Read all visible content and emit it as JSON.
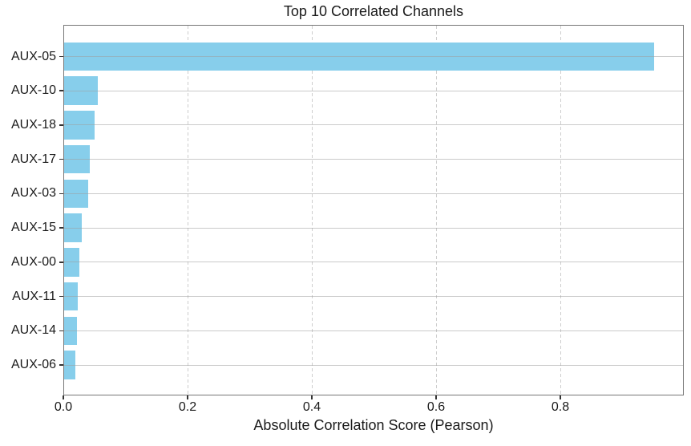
{
  "chart_data": {
    "type": "bar",
    "orientation": "horizontal",
    "title": "Top 10 Correlated Channels",
    "xlabel": "Absolute Correlation Score (Pearson)",
    "ylabel": "",
    "categories": [
      "AUX-05",
      "AUX-10",
      "AUX-18",
      "AUX-17",
      "AUX-03",
      "AUX-15",
      "AUX-00",
      "AUX-11",
      "AUX-14",
      "AUX-06"
    ],
    "values": [
      0.95,
      0.054,
      0.049,
      0.041,
      0.039,
      0.028,
      0.024,
      0.022,
      0.02,
      0.018
    ],
    "x_ticks": [
      0.0,
      0.2,
      0.4,
      0.6,
      0.8
    ],
    "x_tick_labels": [
      "0.0",
      "0.2",
      "0.4",
      "0.6",
      "0.8"
    ],
    "xlim": [
      0,
      0.998
    ],
    "grid": {
      "vertical": "dashed",
      "horizontal": "solid",
      "horizontal_above_bars": true
    },
    "legend": null,
    "colors": {
      "bar": "#87CEEB",
      "grid_dashed": "#cdcdcd",
      "grid_solid_overlay": "#9e9e9e",
      "spine": "#777777",
      "tick_mark": "#333333",
      "text": "#1a1a1a"
    }
  }
}
